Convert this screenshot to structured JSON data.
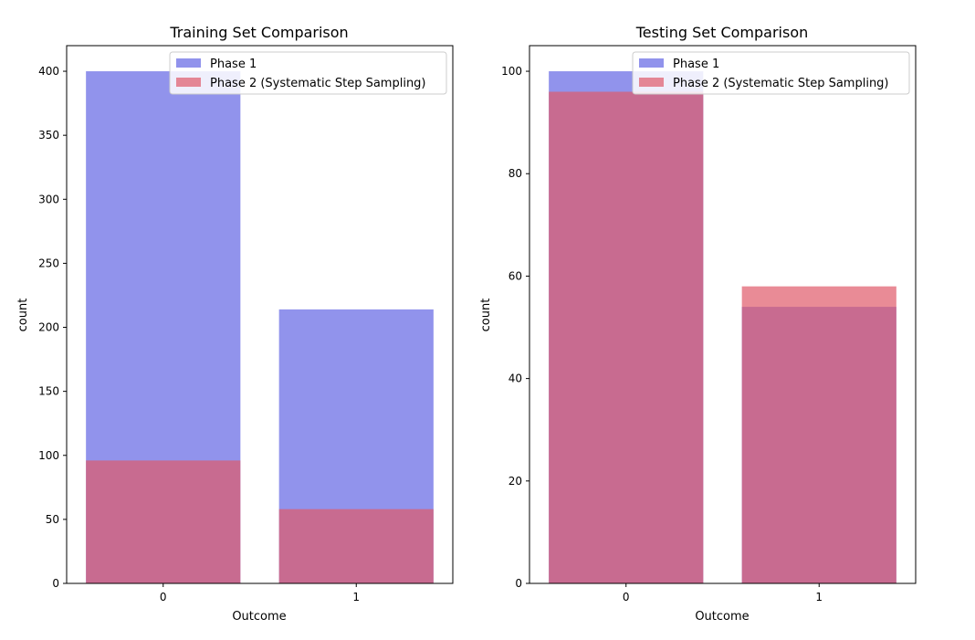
{
  "colors": {
    "phase1": "#6c6fe6",
    "phase2": "#e05a6a"
  },
  "chart_data": [
    {
      "type": "bar",
      "title": "Training Set Comparison",
      "xlabel": "Outcome",
      "ylabel": "count",
      "categories": [
        "0",
        "1"
      ],
      "ylim": [
        0,
        420
      ],
      "yticks": [
        0,
        50,
        100,
        150,
        200,
        250,
        300,
        350,
        400
      ],
      "legend_placement": "top-right",
      "grid": false,
      "series": [
        {
          "name": "Phase 1",
          "values": [
            400,
            214
          ]
        },
        {
          "name": "Phase 2 (Systematic Step Sampling)",
          "values": [
            96,
            58
          ]
        }
      ]
    },
    {
      "type": "bar",
      "title": "Testing Set Comparison",
      "xlabel": "Outcome",
      "ylabel": "count",
      "categories": [
        "0",
        "1"
      ],
      "ylim": [
        0,
        105
      ],
      "yticks": [
        0,
        20,
        40,
        60,
        80,
        100
      ],
      "legend_placement": "top-right",
      "grid": false,
      "series": [
        {
          "name": "Phase 1",
          "values": [
            100,
            54
          ]
        },
        {
          "name": "Phase 2 (Systematic Step Sampling)",
          "values": [
            96,
            58
          ]
        }
      ]
    }
  ]
}
